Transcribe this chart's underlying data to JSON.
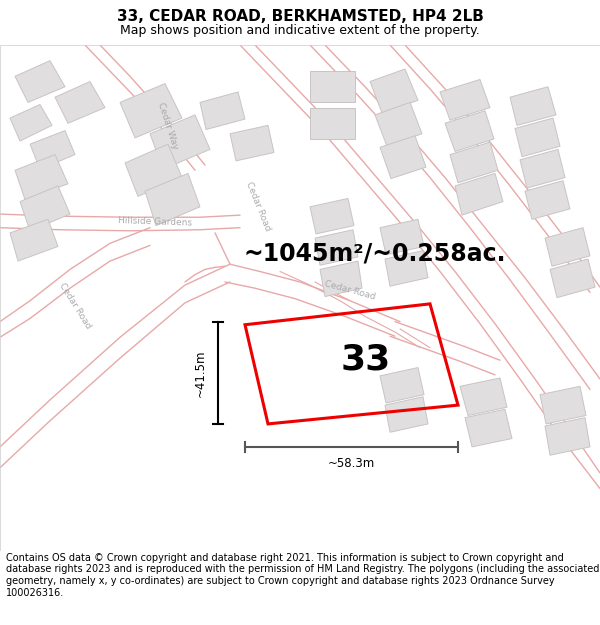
{
  "title": "33, CEDAR ROAD, BERKHAMSTED, HP4 2LB",
  "subtitle": "Map shows position and indicative extent of the property.",
  "area_text": "~1045m²/~0.258ac.",
  "property_number": "33",
  "dim_width": "~58.3m",
  "dim_height": "~41.5m",
  "footer": "Contains OS data © Crown copyright and database right 2021. This information is subject to Crown copyright and database rights 2023 and is reproduced with the permission of HM Land Registry. The polygons (including the associated geometry, namely x, y co-ordinates) are subject to Crown copyright and database rights 2023 Ordnance Survey 100026316.",
  "map_bg": "#ffffff",
  "road_color": "#e8a8a8",
  "building_fill": "#e0dede",
  "building_edge": "#c8c4c4",
  "property_color": "#ee0000",
  "street_label_color": "#aaaaaa",
  "title_fontsize": 11,
  "subtitle_fontsize": 9,
  "area_fontsize": 17,
  "footer_fontsize": 7.0
}
